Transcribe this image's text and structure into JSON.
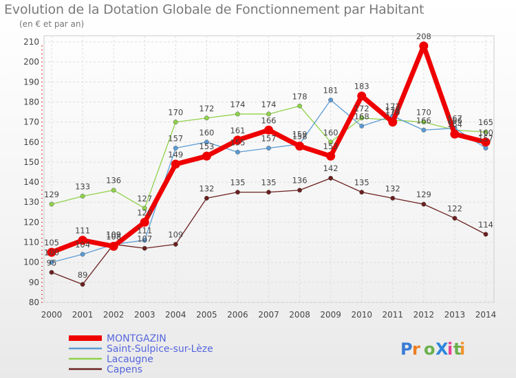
{
  "chart_data": {
    "type": "line",
    "title": "Evolution de la Dotation Globale de Fonctionnement par Habitant",
    "subtitle": "(en € et par an)",
    "xlabel": "",
    "ylabel": "",
    "ylim": [
      80,
      210
    ],
    "yticks": [
      80,
      90,
      100,
      110,
      120,
      130,
      140,
      150,
      160,
      170,
      180,
      190,
      200,
      210
    ],
    "categories": [
      "2000",
      "2001",
      "2002",
      "2003",
      "2004",
      "2005",
      "2006",
      "2007",
      "2008",
      "2009",
      "2010",
      "2011",
      "2012",
      "2013",
      "2014"
    ],
    "grid": true,
    "legend_position": "bottom-left",
    "series": [
      {
        "name": "MONTGAZIN",
        "color": "#ee0000",
        "values": [
          105,
          111,
          108,
          120,
          149,
          153,
          161,
          166,
          158,
          153,
          183,
          170,
          208,
          164,
          160
        ]
      },
      {
        "name": "Saint-Sulpice-sur-Lèze",
        "color": "#5b9bd5",
        "values": [
          100,
          104,
          109,
          111,
          157,
          160,
          155,
          157,
          159,
          181,
          168,
          173,
          166,
          167,
          157
        ]
      },
      {
        "name": "Lacaugne",
        "color": "#8fd24a",
        "values": [
          129,
          133,
          136,
          127,
          170,
          172,
          174,
          174,
          178,
          160,
          172,
          171,
          170,
          166,
          165
        ]
      },
      {
        "name": "Capens",
        "color": "#6b1f1f",
        "values": [
          95,
          89,
          109,
          107,
          109,
          132,
          135,
          135,
          136,
          142,
          135,
          132,
          129,
          122,
          114
        ]
      }
    ]
  },
  "branding": {
    "logo_text": "ProXiti"
  }
}
